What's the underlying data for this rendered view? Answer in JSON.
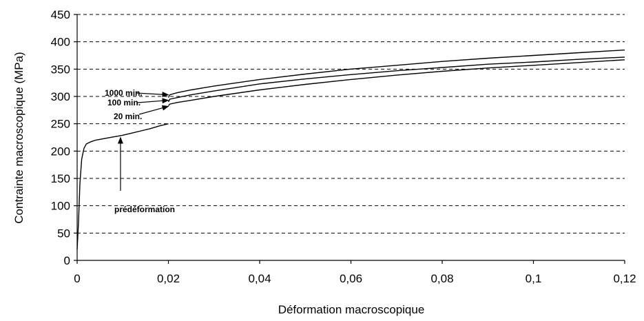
{
  "chart_data": {
    "type": "line",
    "title": "",
    "xlabel": "Déformation macroscopique",
    "ylabel": "Contrainte macroscopique (MPa)",
    "xlim": [
      0,
      0.12
    ],
    "ylim": [
      0,
      450
    ],
    "x_ticks": [
      0,
      0.02,
      0.04,
      0.06,
      0.08,
      0.1,
      0.12
    ],
    "x_tick_labels": [
      "0",
      "0,02",
      "0,04",
      "0,06",
      "0,08",
      "0,1",
      "0,12"
    ],
    "y_ticks": [
      0,
      50,
      100,
      150,
      200,
      250,
      300,
      350,
      400,
      450
    ],
    "y_tick_labels": [
      "0",
      "50",
      "100",
      "150",
      "200",
      "250",
      "300",
      "350",
      "400",
      "450"
    ],
    "grid": "horizontal dashed",
    "series": [
      {
        "x": [
          0,
          0.0003,
          0.0006,
          0.001,
          0.0015,
          0.002,
          0.003,
          0.004,
          0.006,
          0.008,
          0.01,
          0.012,
          0.014,
          0.016,
          0.018,
          0.02
        ],
        "y": [
          20,
          70,
          140,
          185,
          205,
          213,
          217,
          220,
          223,
          226,
          229,
          233,
          237,
          241,
          246,
          250
        ]
      },
      {
        "x": [
          0.02,
          0.0203,
          0.022,
          0.025,
          0.03,
          0.04,
          0.05,
          0.06,
          0.07,
          0.08,
          0.09,
          0.1,
          0.11,
          0.12
        ],
        "y": [
          283,
          286,
          289,
          293,
          300,
          312,
          322,
          331,
          339,
          346,
          352,
          357,
          362,
          367
        ]
      },
      {
        "x": [
          0.02,
          0.0203,
          0.022,
          0.025,
          0.03,
          0.04,
          0.05,
          0.06,
          0.07,
          0.08,
          0.09,
          0.1,
          0.11,
          0.12
        ],
        "y": [
          290,
          295,
          298,
          303,
          310,
          323,
          332,
          340,
          347,
          353,
          359,
          363,
          368,
          372
        ]
      },
      {
        "x": [
          0.02,
          0.0203,
          0.022,
          0.025,
          0.03,
          0.04,
          0.05,
          0.06,
          0.07,
          0.08,
          0.09,
          0.1,
          0.11,
          0.12
        ],
        "y": [
          298,
          303,
          307,
          312,
          319,
          331,
          341,
          350,
          357,
          364,
          370,
          375,
          380,
          385
        ]
      }
    ],
    "annotations": [
      {
        "text": "1000 min.",
        "arrow_to": [
          0.02,
          303
        ]
      },
      {
        "text": "100 min.",
        "arrow_to": [
          0.02,
          293
        ]
      },
      {
        "text": "20 min.",
        "arrow_to": [
          0.02,
          282
        ]
      },
      {
        "text": "prédéformation",
        "arrow_to": [
          0.0095,
          225
        ]
      }
    ]
  }
}
